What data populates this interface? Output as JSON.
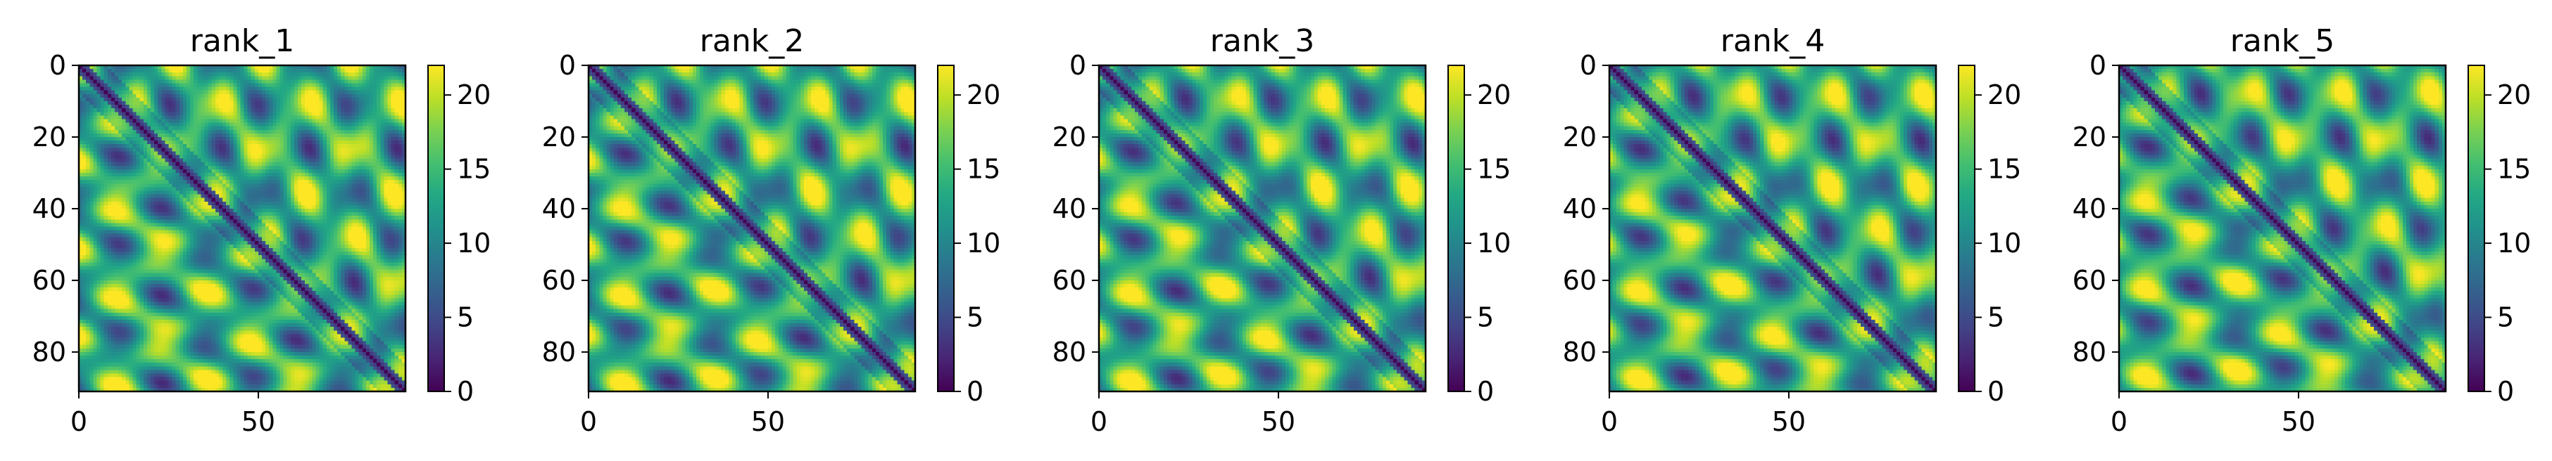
{
  "chart_data": [
    {
      "type": "heatmap",
      "title": "rank_1",
      "x_ticks": [
        "0",
        "50"
      ],
      "y_ticks": [
        "0",
        "20",
        "40",
        "60",
        "80"
      ],
      "xlim": [
        0,
        91
      ],
      "ylim": [
        0,
        91
      ],
      "colorbar": {
        "ticks": [
          "0",
          "5",
          "10",
          "15",
          "20"
        ],
        "range": [
          0,
          22
        ],
        "colormap": "viridis"
      },
      "grid": false
    },
    {
      "type": "heatmap",
      "title": "rank_2",
      "x_ticks": [
        "0",
        "50"
      ],
      "y_ticks": [
        "0",
        "20",
        "40",
        "60",
        "80"
      ],
      "xlim": [
        0,
        91
      ],
      "ylim": [
        0,
        91
      ],
      "colorbar": {
        "ticks": [
          "0",
          "5",
          "10",
          "15",
          "20"
        ],
        "range": [
          0,
          22
        ],
        "colormap": "viridis"
      },
      "grid": false
    },
    {
      "type": "heatmap",
      "title": "rank_3",
      "x_ticks": [
        "0",
        "50"
      ],
      "y_ticks": [
        "0",
        "20",
        "40",
        "60",
        "80"
      ],
      "xlim": [
        0,
        91
      ],
      "ylim": [
        0,
        91
      ],
      "colorbar": {
        "ticks": [
          "0",
          "5",
          "10",
          "15",
          "20"
        ],
        "range": [
          0,
          22
        ],
        "colormap": "viridis"
      },
      "grid": false
    },
    {
      "type": "heatmap",
      "title": "rank_4",
      "x_ticks": [
        "0",
        "50"
      ],
      "y_ticks": [
        "0",
        "20",
        "40",
        "60",
        "80"
      ],
      "xlim": [
        0,
        91
      ],
      "ylim": [
        0,
        91
      ],
      "colorbar": {
        "ticks": [
          "0",
          "5",
          "10",
          "15",
          "20"
        ],
        "range": [
          0,
          22
        ],
        "colormap": "viridis"
      },
      "grid": false
    },
    {
      "type": "heatmap",
      "title": "rank_5",
      "x_ticks": [
        "0",
        "50"
      ],
      "y_ticks": [
        "0",
        "20",
        "40",
        "60",
        "80"
      ],
      "xlim": [
        0,
        91
      ],
      "ylim": [
        0,
        91
      ],
      "colorbar": {
        "ticks": [
          "0",
          "5",
          "10",
          "15",
          "20"
        ],
        "range": [
          0,
          22
        ],
        "colormap": "viridis"
      },
      "grid": false
    }
  ]
}
